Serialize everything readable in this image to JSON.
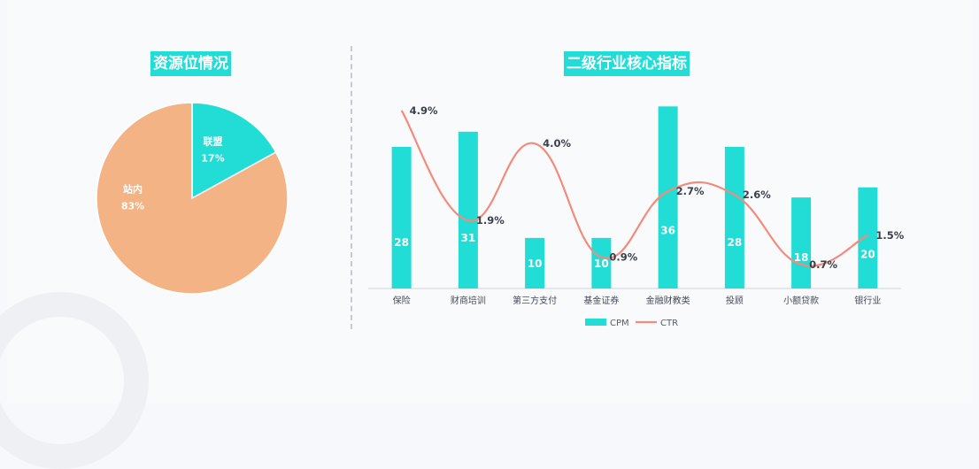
{
  "pie_title": "资源位情况",
  "bar_title": "二级行业核心指标",
  "colors": {
    "cpm": "#22dcd6",
    "ctr": "#f28b7c",
    "site": "#f3b384",
    "alliance": "#22dcd6"
  },
  "chart_data": [
    {
      "type": "pie",
      "title": "资源位情况",
      "slices": [
        {
          "label": "联盟",
          "value": 17,
          "value_label": "17%"
        },
        {
          "label": "站内",
          "value": 83,
          "value_label": "83%"
        }
      ]
    },
    {
      "type": "bar",
      "title": "二级行业核心指标",
      "categories": [
        "保险",
        "财商培训",
        "第三方支付",
        "基金证券",
        "金融财教类",
        "投顾",
        "小额贷款",
        "银行业"
      ],
      "series": [
        {
          "name": "CPM",
          "type": "bar",
          "values": [
            28,
            31,
            10,
            10,
            36,
            28,
            18,
            20
          ]
        },
        {
          "name": "CTR",
          "type": "line",
          "values": [
            4.9,
            1.9,
            4.0,
            0.9,
            2.7,
            2.6,
            0.7,
            1.5
          ],
          "value_labels": [
            "4.9%",
            "1.9%",
            "4.0%",
            "0.9%",
            "2.7%",
            "2.6%",
            "0.7%",
            "1.5%"
          ]
        }
      ],
      "legend": "bottom"
    }
  ]
}
